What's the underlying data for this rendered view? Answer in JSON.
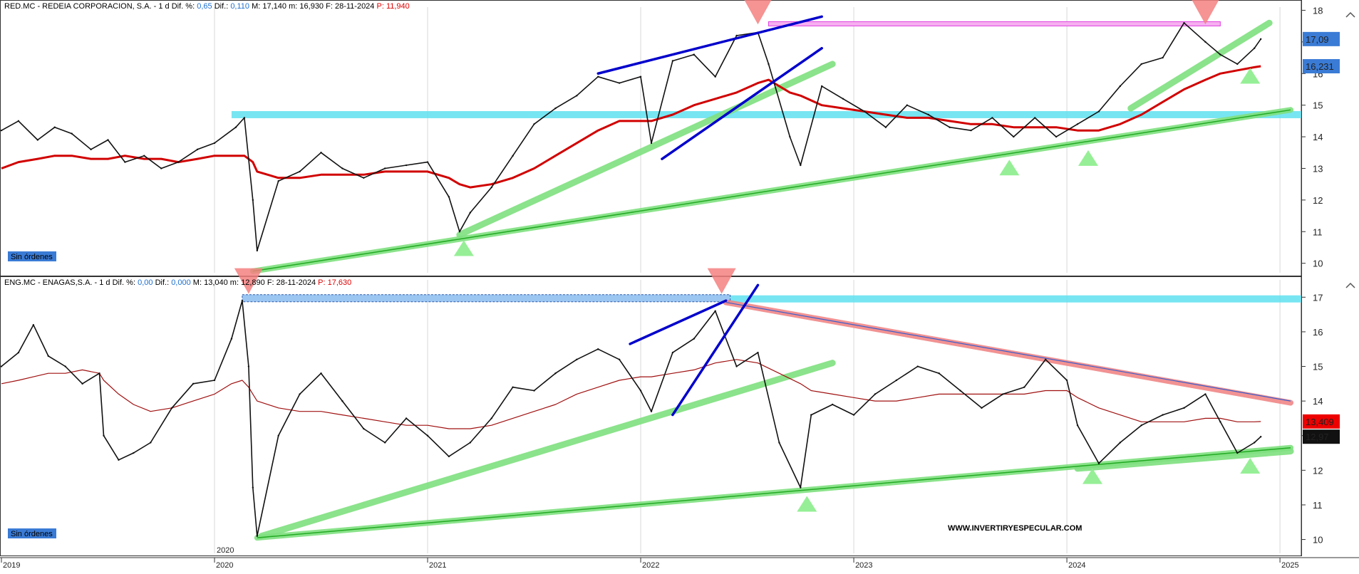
{
  "watermark": "WWW.INVERTIRYESPECULAR.COM",
  "x_axis": {
    "ticks": [
      "2019",
      "2020",
      "2021",
      "2022",
      "2023",
      "2024",
      "2025"
    ],
    "year_label_top": "2020",
    "start": 2019.0,
    "end": 2025.1
  },
  "panels": [
    {
      "id": "red",
      "header": {
        "name": "RED.MC - REDEIA CORPORACION, S.A.",
        "period": "1 d",
        "dif_pct_label": "Dif. %:",
        "dif_pct_value": "0,65",
        "dif_label": "Dif.:",
        "dif_value": "0,110",
        "max_label": "M:",
        "max_value": "17,140",
        "min_label": "m:",
        "min_value": "16,930",
        "date_label": "F:",
        "date_value": "28-11-2024",
        "prev_label": "P:",
        "prev_value": "11,940"
      },
      "orders_label": "Sin órdenes",
      "y_ticks": [
        "18",
        "17",
        "16",
        "15",
        "14",
        "13",
        "12",
        "11",
        "10"
      ],
      "y_range": [
        9.7,
        18.1
      ],
      "price_badge": {
        "value": "17,09",
        "bg": "#3a7bd5"
      },
      "ma_badge": {
        "value": "16,231",
        "bg": "#3a7bd5"
      },
      "colors": {
        "price": "#111111",
        "ma": "#d10000",
        "support": "#22aa22",
        "support_glow": "#7fe07f",
        "resistance": "#0000cc",
        "band": "#60e0f0",
        "top_line": "#e040e0"
      },
      "chart_data": {
        "type": "line",
        "x": [
          2019.0,
          2019.08,
          2019.17,
          2019.25,
          2019.33,
          2019.42,
          2019.5,
          2019.58,
          2019.67,
          2019.75,
          2019.83,
          2019.92,
          2020.0,
          2020.1,
          2020.14,
          2020.18,
          2020.2,
          2020.3,
          2020.4,
          2020.5,
          2020.6,
          2020.7,
          2020.8,
          2020.9,
          2021.0,
          2021.1,
          2021.15,
          2021.2,
          2021.3,
          2021.4,
          2021.5,
          2021.6,
          2021.7,
          2021.8,
          2021.9,
          2022.0,
          2022.05,
          2022.15,
          2022.25,
          2022.35,
          2022.45,
          2022.55,
          2022.6,
          2022.7,
          2022.75,
          2022.85,
          2022.95,
          2023.05,
          2023.15,
          2023.25,
          2023.35,
          2023.45,
          2023.55,
          2023.65,
          2023.75,
          2023.85,
          2023.95,
          2024.05,
          2024.15,
          2024.25,
          2024.35,
          2024.45,
          2024.55,
          2024.65,
          2024.72,
          2024.8,
          2024.88,
          2024.91
        ],
        "series": [
          {
            "values": [
              14.2,
              14.5,
              13.9,
              14.3,
              14.1,
              13.6,
              13.9,
              13.2,
              13.4,
              13.0,
              13.2,
              13.6,
              13.8,
              14.3,
              14.6,
              12.0,
              10.4,
              12.6,
              12.9,
              13.5,
              13.0,
              12.7,
              13.0,
              13.1,
              13.2,
              12.1,
              11.0,
              11.6,
              12.4,
              13.4,
              14.4,
              14.9,
              15.3,
              15.9,
              15.7,
              15.9,
              13.8,
              16.4,
              16.6,
              15.9,
              17.2,
              17.3,
              16.3,
              14.0,
              13.1,
              15.6,
              15.2,
              14.8,
              14.3,
              15.0,
              14.7,
              14.3,
              14.2,
              14.6,
              14.0,
              14.6,
              14.0,
              14.4,
              14.8,
              15.6,
              16.3,
              16.5,
              17.6,
              17.0,
              16.6,
              16.3,
              16.8,
              17.09
            ]
          },
          {
            "values": [
              13.0,
              13.2,
              13.3,
              13.4,
              13.4,
              13.3,
              13.3,
              13.4,
              13.3,
              13.3,
              13.2,
              13.3,
              13.4,
              13.4,
              13.4,
              13.2,
              12.9,
              12.7,
              12.7,
              12.8,
              12.8,
              12.8,
              12.9,
              12.9,
              12.9,
              12.7,
              12.5,
              12.4,
              12.5,
              12.7,
              13.0,
              13.4,
              13.8,
              14.2,
              14.5,
              14.5,
              14.5,
              14.7,
              15.0,
              15.2,
              15.4,
              15.7,
              15.8,
              15.4,
              15.3,
              15.0,
              14.9,
              14.8,
              14.7,
              14.6,
              14.6,
              14.5,
              14.4,
              14.4,
              14.3,
              14.3,
              14.3,
              14.2,
              14.2,
              14.4,
              14.7,
              15.1,
              15.5,
              15.8,
              16.0,
              16.1,
              16.2,
              16.23
            ]
          }
        ],
        "ylim": [
          9.7,
          18.1
        ]
      },
      "annotations": {
        "lines": [
          {
            "kind": "support",
            "x1": 2020.18,
            "y1": 9.75,
            "x2": 2025.05,
            "y2": 14.85
          },
          {
            "kind": "support_glow",
            "x1": 2021.15,
            "y1": 10.9,
            "x2": 2022.9,
            "y2": 16.3
          },
          {
            "kind": "support_glow",
            "x1": 2024.3,
            "y1": 14.9,
            "x2": 2024.95,
            "y2": 17.6
          },
          {
            "kind": "resistance",
            "x1": 2021.8,
            "y1": 16.0,
            "x2": 2022.85,
            "y2": 17.8
          },
          {
            "kind": "resistance",
            "x1": 2022.1,
            "y1": 13.3,
            "x2": 2022.85,
            "y2": 16.8
          },
          {
            "kind": "top_line",
            "x1": 2022.6,
            "y1": 17.55,
            "x2": 2024.72,
            "y2": 17.55
          }
        ],
        "band": {
          "y": 14.7,
          "x1": 2020.08,
          "x2": 2025.1
        },
        "down_triangles": [
          {
            "x": 2022.55,
            "y": 18.05
          },
          {
            "x": 2024.65,
            "y": 18.05
          }
        ],
        "up_triangles": [
          {
            "x": 2021.17,
            "y": 10.5
          },
          {
            "x": 2023.73,
            "y": 13.05
          },
          {
            "x": 2024.1,
            "y": 13.35
          },
          {
            "x": 2024.86,
            "y": 15.95
          }
        ]
      }
    },
    {
      "id": "eng",
      "header": {
        "name": "ENG.MC - ENAGAS,S.A.",
        "period": "1 d",
        "dif_pct_label": "Dif. %:",
        "dif_pct_value": "0,00",
        "dif_label": "Dif.:",
        "dif_value": "0,000",
        "max_label": "M:",
        "max_value": "13,040",
        "min_label": "m:",
        "min_value": "12,890",
        "date_label": "F:",
        "date_value": "28-11-2024",
        "prev_label": "P:",
        "prev_value": "17,630"
      },
      "orders_label": "Sin órdenes",
      "y_ticks": [
        "17",
        "16",
        "15",
        "14",
        "13",
        "12",
        "11",
        "10"
      ],
      "y_range": [
        9.6,
        17.5
      ],
      "price_badge": {
        "value": "12,97",
        "bg": "#111111"
      },
      "ma_badge": {
        "value": "13,409",
        "bg": "#ee0000"
      },
      "colors": {
        "price": "#111111",
        "ma": "#a01010",
        "support": "#22aa22",
        "support_glow": "#7fe07f",
        "resistance": "#0000cc",
        "band": "#60e0f0",
        "top_line": "#4a90e2",
        "downtrend": "#f08080"
      },
      "chart_data": {
        "type": "line",
        "x": [
          2019.0,
          2019.08,
          2019.15,
          2019.22,
          2019.3,
          2019.38,
          2019.46,
          2019.48,
          2019.55,
          2019.62,
          2019.7,
          2019.8,
          2019.9,
          2020.0,
          2020.08,
          2020.13,
          2020.16,
          2020.18,
          2020.2,
          2020.3,
          2020.4,
          2020.5,
          2020.6,
          2020.7,
          2020.8,
          2020.9,
          2021.0,
          2021.1,
          2021.2,
          2021.3,
          2021.4,
          2021.5,
          2021.6,
          2021.7,
          2021.8,
          2021.9,
          2022.0,
          2022.05,
          2022.15,
          2022.25,
          2022.35,
          2022.45,
          2022.55,
          2022.65,
          2022.75,
          2022.8,
          2022.9,
          2023.0,
          2023.1,
          2023.2,
          2023.3,
          2023.4,
          2023.5,
          2023.6,
          2023.7,
          2023.8,
          2023.9,
          2024.0,
          2024.05,
          2024.15,
          2024.25,
          2024.35,
          2024.45,
          2024.55,
          2024.65,
          2024.72,
          2024.8,
          2024.88,
          2024.91
        ],
        "series": [
          {
            "values": [
              15.0,
              15.4,
              16.2,
              15.3,
              15.0,
              14.5,
              14.8,
              13.0,
              12.3,
              12.5,
              12.8,
              13.8,
              14.5,
              14.6,
              15.8,
              16.9,
              15.0,
              11.5,
              10.1,
              13.0,
              14.2,
              14.8,
              14.0,
              13.2,
              12.8,
              13.5,
              13.0,
              12.4,
              12.8,
              13.5,
              14.4,
              14.3,
              14.8,
              15.2,
              15.5,
              15.2,
              14.3,
              13.7,
              15.4,
              15.8,
              16.6,
              15.0,
              15.4,
              12.8,
              11.5,
              13.6,
              13.9,
              13.6,
              14.2,
              14.6,
              15.0,
              14.8,
              14.3,
              13.8,
              14.2,
              14.4,
              15.2,
              14.6,
              13.3,
              12.2,
              12.8,
              13.3,
              13.6,
              13.8,
              14.2,
              13.4,
              12.5,
              12.8,
              12.97
            ]
          },
          {
            "values": [
              14.5,
              14.6,
              14.7,
              14.8,
              14.8,
              14.9,
              14.8,
              14.6,
              14.2,
              13.9,
              13.7,
              13.8,
              14.0,
              14.2,
              14.5,
              14.6,
              14.4,
              14.2,
              14.0,
              13.8,
              13.7,
              13.7,
              13.6,
              13.5,
              13.4,
              13.3,
              13.3,
              13.2,
              13.2,
              13.3,
              13.5,
              13.7,
              13.9,
              14.2,
              14.4,
              14.6,
              14.7,
              14.7,
              14.8,
              14.9,
              15.1,
              15.2,
              15.1,
              14.8,
              14.5,
              14.3,
              14.2,
              14.1,
              14.0,
              14.0,
              14.1,
              14.2,
              14.2,
              14.2,
              14.2,
              14.2,
              14.3,
              14.3,
              14.1,
              13.8,
              13.6,
              13.4,
              13.4,
              13.4,
              13.5,
              13.5,
              13.4,
              13.4,
              13.409
            ]
          }
        ],
        "ylim": [
          9.6,
          17.5
        ]
      },
      "annotations": {
        "lines": [
          {
            "kind": "support",
            "x1": 2020.2,
            "y1": 10.05,
            "x2": 2025.05,
            "y2": 12.65
          },
          {
            "kind": "support_glow",
            "x1": 2020.22,
            "y1": 10.1,
            "x2": 2022.9,
            "y2": 15.1
          },
          {
            "kind": "support_glow",
            "x1": 2024.05,
            "y1": 12.05,
            "x2": 2025.05,
            "y2": 12.55
          },
          {
            "kind": "resistance",
            "x1": 2021.95,
            "y1": 15.65,
            "x2": 2022.4,
            "y2": 16.9
          },
          {
            "kind": "resistance",
            "x1": 2022.15,
            "y1": 13.6,
            "x2": 2022.55,
            "y2": 17.35
          },
          {
            "kind": "downtrend",
            "x1": 2022.4,
            "y1": 16.85,
            "x2": 2025.05,
            "y2": 13.95
          },
          {
            "kind": "downtrend_thin",
            "x1": 2022.4,
            "y1": 16.85,
            "x2": 2025.05,
            "y2": 14.0
          },
          {
            "kind": "top_line",
            "x1": 2020.13,
            "y1": 16.95,
            "x2": 2022.42,
            "y2": 16.95
          }
        ],
        "band": {
          "y": 16.95,
          "x1": 2022.42,
          "x2": 2025.1
        },
        "down_triangles": [
          {
            "x": 2020.16,
            "y": 17.55
          },
          {
            "x": 2022.38,
            "y": 17.55
          }
        ],
        "up_triangles": [
          {
            "x": 2022.78,
            "y": 11.05
          },
          {
            "x": 2024.12,
            "y": 11.85
          },
          {
            "x": 2024.86,
            "y": 12.15
          }
        ]
      }
    }
  ]
}
